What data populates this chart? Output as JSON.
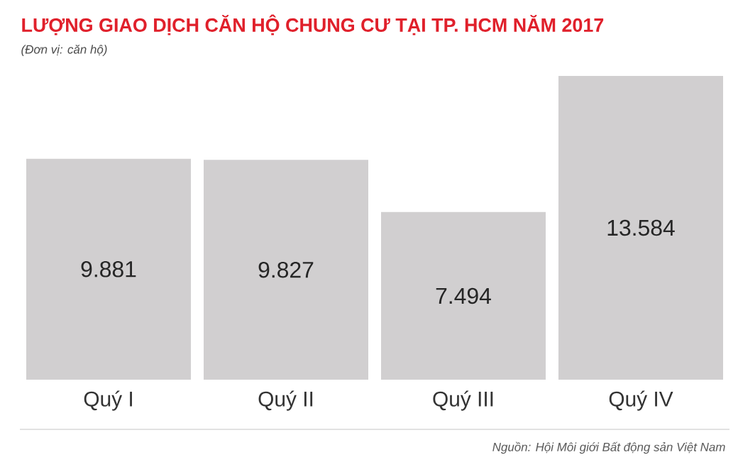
{
  "chart_data": {
    "type": "bar",
    "title": "LƯỢNG GIAO DỊCH CĂN HỘ CHUNG CƯ TẠI TP. HCM NĂM 2017",
    "subtitle": "(Đơn vị: căn hộ)",
    "categories": [
      "Quý I",
      "Quý II",
      "Quý III",
      "Quý IV"
    ],
    "values": [
      9881,
      9827,
      7494,
      13584
    ],
    "value_labels": [
      "9.881",
      "9.827",
      "7.494",
      "13.584"
    ],
    "color": "#d1cfd0",
    "annotations": [
      "Nguồn: Hội Môi giới Bất động sản Việt Nam"
    ]
  }
}
